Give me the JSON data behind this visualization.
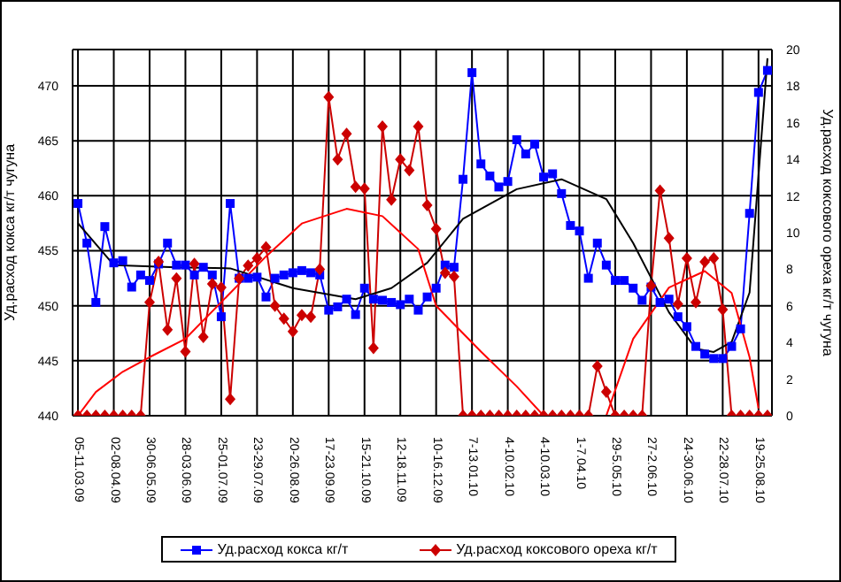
{
  "chart_data": {
    "type": "line",
    "categories": [
      "05-11.03.09",
      null,
      null,
      null,
      "02-08.04.09",
      null,
      null,
      null,
      "30-06.05.09",
      null,
      null,
      null,
      "28-03.06.09",
      null,
      null,
      null,
      "25-01.07.09",
      null,
      null,
      null,
      "23-29.07.09",
      null,
      null,
      null,
      "20-26.08.09",
      null,
      null,
      null,
      "17-23.09.09",
      null,
      null,
      null,
      "15-21.10.09",
      null,
      null,
      null,
      "12-18.11.09",
      null,
      null,
      null,
      "10-16.12.09",
      null,
      null,
      null,
      "7-13.01.10",
      null,
      null,
      null,
      "4-10.02.10",
      null,
      null,
      null,
      "4-10.03.10",
      null,
      null,
      null,
      "1-7.04.10",
      null,
      null,
      null,
      "29-5.05.10",
      null,
      null,
      null,
      "27-2.06.10",
      null,
      null,
      null,
      "24-30.06.10",
      null,
      null,
      null,
      "22-28.07.10",
      null,
      null,
      null,
      "19-25.08.10",
      null
    ],
    "series": [
      {
        "name": "Уд.расход кокса кг/т",
        "color": "#0000ff",
        "marker": "square",
        "values": [
          459.3,
          455.7,
          450.3,
          457.2,
          453.9,
          454.1,
          451.7,
          452.8,
          452.3,
          453.8,
          455.7,
          453.7,
          453.7,
          452.8,
          453.5,
          452.8,
          449.0,
          459.3,
          452.5,
          452.5,
          452.6,
          450.8,
          452.5,
          452.8,
          453.0,
          453.2,
          453.0,
          452.8,
          449.6,
          449.9,
          450.6,
          449.2,
          451.6,
          450.6,
          450.5,
          450.3,
          450.1,
          450.6,
          449.6,
          450.8,
          451.6,
          453.7,
          453.5,
          461.5,
          471.2,
          462.9,
          461.8,
          460.8,
          461.3,
          465.1,
          463.8,
          464.7,
          461.7,
          462.0,
          460.2,
          457.3,
          456.8,
          452.5,
          455.7,
          453.7,
          452.3,
          452.3,
          451.6,
          450.5,
          451.7,
          450.3,
          450.6,
          449.0,
          448.1,
          446.3,
          445.6,
          445.2,
          445.2,
          446.3,
          447.9,
          458.4,
          469.4,
          471.4
        ]
      },
      {
        "name": "Уд.расход коксового ореха кг/т",
        "color": "#cc0000",
        "marker": "diamond",
        "axis": "y2",
        "values": [
          0,
          0,
          0,
          0,
          0,
          0,
          0,
          0,
          6.2,
          8.4,
          4.7,
          7.5,
          3.5,
          8.3,
          4.3,
          7.2,
          7.0,
          0.9,
          7.5,
          8.2,
          8.6,
          9.2,
          6.0,
          5.3,
          4.6,
          5.5,
          5.4,
          8.0,
          17.4,
          14.0,
          15.4,
          12.5,
          12.4,
          3.7,
          15.8,
          11.8,
          14.0,
          13.4,
          15.8,
          11.5,
          10.2,
          7.8,
          7.6,
          0,
          0,
          0,
          0,
          0,
          0,
          0,
          0,
          0,
          0,
          0,
          0,
          0,
          0,
          0,
          2.7,
          1.3,
          0,
          0,
          0,
          0,
          7.1,
          12.3,
          9.7,
          6.1,
          8.6,
          6.2,
          8.4,
          8.6,
          5.8,
          0,
          0,
          0,
          0,
          0
        ]
      },
      {
        "type": "line",
        "color": "#000000",
        "marker": "none",
        "values": [
          457.5,
          null,
          null,
          null,
          453.7,
          null,
          null,
          null,
          null,
          null,
          null,
          453.5,
          null,
          null,
          null,
          null,
          null,
          453.4,
          null,
          null,
          null,
          null,
          null,
          null,
          451.6,
          null,
          null,
          null,
          null,
          null,
          null,
          450.6,
          null,
          null,
          null,
          451.6,
          null,
          null,
          null,
          453.9,
          null,
          null,
          null,
          457.9,
          null,
          null,
          null,
          null,
          null,
          460.6,
          null,
          null,
          null,
          null,
          461.5,
          null,
          null,
          null,
          null,
          459.7,
          null,
          null,
          455.7,
          null,
          null,
          null,
          449.4,
          null,
          null,
          446.1,
          null,
          445.8,
          null,
          446.7,
          null,
          451.2,
          null,
          472.5
        ]
      },
      {
        "type": "line",
        "color": "#ff0000",
        "marker": "none",
        "axis": "y2",
        "values": [
          0,
          null,
          1.3,
          null,
          null,
          2.4,
          null,
          null,
          3.2,
          null,
          null,
          null,
          4.2,
          null,
          null,
          null,
          6.2,
          null,
          null,
          null,
          null,
          8.7,
          null,
          null,
          null,
          10.5,
          null,
          null,
          null,
          null,
          11.3,
          null,
          null,
          null,
          10.9,
          null,
          null,
          null,
          9.1,
          null,
          6.0,
          null,
          null,
          null,
          null,
          3.5,
          null,
          null,
          null,
          1.6,
          null,
          null,
          0,
          null,
          null,
          null,
          null,
          null,
          null,
          0,
          null,
          null,
          4.2,
          null,
          null,
          null,
          7.0,
          null,
          null,
          null,
          7.9,
          null,
          null,
          6.7,
          null,
          3.2,
          0.4,
          null
        ]
      }
    ],
    "ylabel": "Уд.расход кокса кг/т чугуна",
    "y2label": "Уд.расход коксового ореха кг/т чугуна",
    "ylim": [
      440,
      473.3
    ],
    "yticks": [
      440,
      445,
      450,
      455,
      460,
      465,
      470
    ],
    "y2lim": [
      0,
      20
    ],
    "y2ticks": [
      0,
      2,
      4,
      6,
      8,
      10,
      12,
      14,
      16,
      18,
      20
    ],
    "grid": true,
    "legend": "bottom"
  }
}
